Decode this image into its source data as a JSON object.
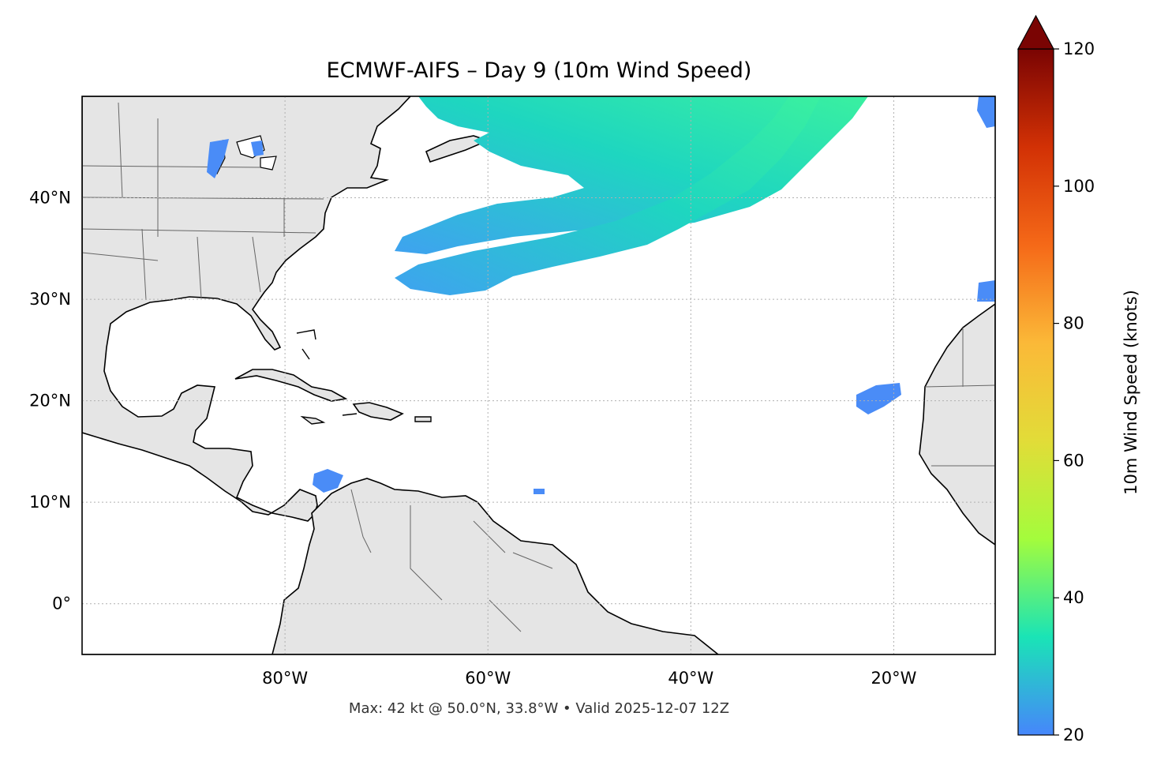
{
  "title": "ECMWF-AIFS – Day 9 (10m Wind Speed)",
  "footer": "Max: 42 kt @ 50.0°N, 33.8°W • Valid 2025-12-07 12Z",
  "map": {
    "extent": {
      "lon_min": -100,
      "lon_max": -10,
      "lat_min": -5,
      "lat_max": 50
    },
    "lat_ticks": [
      {
        "value": 40,
        "label": "40°N"
      },
      {
        "value": 30,
        "label": "30°N"
      },
      {
        "value": 20,
        "label": "20°N"
      },
      {
        "value": 10,
        "label": "10°N"
      },
      {
        "value": 0,
        "label": "0°"
      }
    ],
    "lon_ticks": [
      {
        "value": -80,
        "label": "80°W"
      },
      {
        "value": -60,
        "label": "60°W"
      },
      {
        "value": -40,
        "label": "40°W"
      },
      {
        "value": -20,
        "label": "20°W"
      }
    ],
    "gridlines": true,
    "land_color": "#e5e5e5",
    "ocean_color": "#ffffff",
    "coastline_color": "#000000",
    "border_color": "#666666"
  },
  "colorbar": {
    "label": "10m Wind Speed (knots)",
    "min": 20,
    "max": 120,
    "extend": "max",
    "extend_color": "#7a0403",
    "ticks": [
      {
        "value": 120,
        "label": "120"
      },
      {
        "value": 100,
        "label": "100"
      },
      {
        "value": 80,
        "label": "80"
      },
      {
        "value": 60,
        "label": "60"
      },
      {
        "value": 40,
        "label": "40"
      },
      {
        "value": 20,
        "label": "20"
      }
    ],
    "colormap": [
      "#4686fb",
      "#1ae4b6",
      "#a4fc3c",
      "#e2dc38",
      "#fbb938",
      "#f56918",
      "#d23105",
      "#7a0403"
    ]
  }
}
